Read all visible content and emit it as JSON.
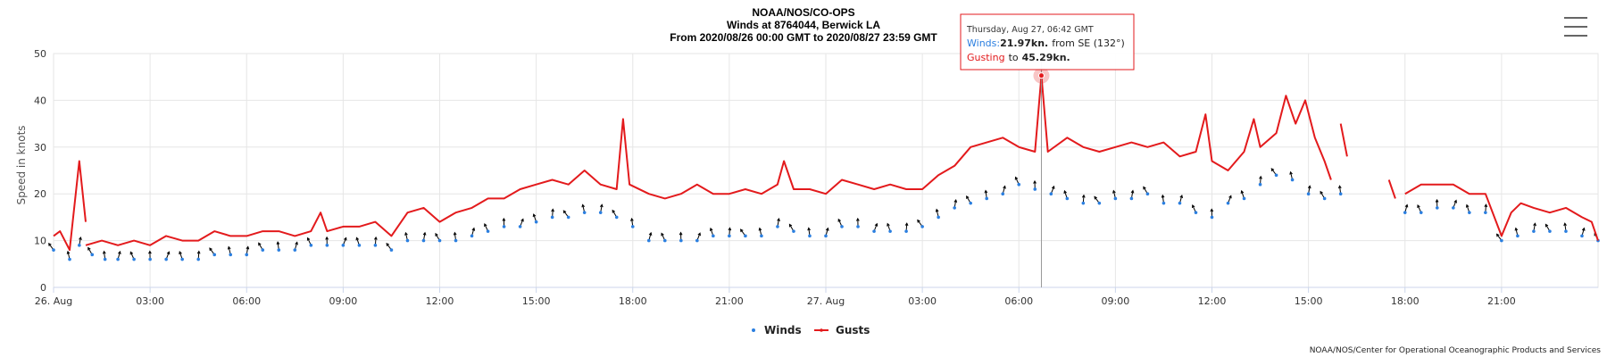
{
  "chart_data": {
    "type": "line",
    "title_lines": [
      "NOAA/NOS/CO-OPS",
      "Winds at 8764044, Berwick LA",
      "From 2020/08/26 00:00 GMT to 2020/08/27 23:59 GMT"
    ],
    "ylabel": "Speed in knots",
    "xlabel": "",
    "ylim": [
      0,
      50
    ],
    "yticks": [
      0,
      10,
      20,
      30,
      40,
      50
    ],
    "xlim": [
      "2020-08-26T00:00",
      "2020-08-27T23:59"
    ],
    "xticks": [
      {
        "hour": 0,
        "label": "26. Aug"
      },
      {
        "hour": 3,
        "label": "03:00"
      },
      {
        "hour": 6,
        "label": "06:00"
      },
      {
        "hour": 9,
        "label": "09:00"
      },
      {
        "hour": 12,
        "label": "12:00"
      },
      {
        "hour": 15,
        "label": "15:00"
      },
      {
        "hour": 18,
        "label": "18:00"
      },
      {
        "hour": 21,
        "label": "21:00"
      },
      {
        "hour": 24,
        "label": "27. Aug"
      },
      {
        "hour": 27,
        "label": "03:00"
      },
      {
        "hour": 30,
        "label": "06:00"
      },
      {
        "hour": 33,
        "label": "09:00"
      },
      {
        "hour": 36,
        "label": "12:00"
      },
      {
        "hour": 39,
        "label": "15:00"
      },
      {
        "hour": 42,
        "label": "18:00"
      },
      {
        "hour": 45,
        "label": "21:00"
      }
    ],
    "grid": true,
    "legend_position": "bottom-center",
    "series": [
      {
        "name": "Winds",
        "kind": "scatter-arrows",
        "color": "#2b7fe0",
        "points": [
          [
            0.0,
            8
          ],
          [
            0.5,
            6
          ],
          [
            0.8,
            9
          ],
          [
            1.2,
            7
          ],
          [
            1.6,
            6
          ],
          [
            2.0,
            6
          ],
          [
            2.5,
            6
          ],
          [
            3.0,
            6
          ],
          [
            3.5,
            6
          ],
          [
            4.0,
            6
          ],
          [
            4.5,
            6
          ],
          [
            5.0,
            7
          ],
          [
            5.5,
            7
          ],
          [
            6.0,
            7
          ],
          [
            6.5,
            8
          ],
          [
            7.0,
            8
          ],
          [
            7.5,
            8
          ],
          [
            8.0,
            9
          ],
          [
            8.5,
            9
          ],
          [
            9.0,
            9
          ],
          [
            9.5,
            9
          ],
          [
            10.0,
            9
          ],
          [
            10.5,
            8
          ],
          [
            11.0,
            10
          ],
          [
            11.5,
            10
          ],
          [
            12.0,
            10
          ],
          [
            12.5,
            10
          ],
          [
            13.0,
            11
          ],
          [
            13.5,
            12
          ],
          [
            14.0,
            13
          ],
          [
            14.5,
            13
          ],
          [
            15.0,
            14
          ],
          [
            15.5,
            15
          ],
          [
            16.0,
            15
          ],
          [
            16.5,
            16
          ],
          [
            17.0,
            16
          ],
          [
            17.5,
            15
          ],
          [
            18.0,
            13
          ],
          [
            18.5,
            10
          ],
          [
            19.0,
            10
          ],
          [
            19.5,
            10
          ],
          [
            20.0,
            10
          ],
          [
            20.5,
            11
          ],
          [
            21.0,
            11
          ],
          [
            21.5,
            11
          ],
          [
            22.0,
            11
          ],
          [
            22.5,
            13
          ],
          [
            23.0,
            12
          ],
          [
            23.5,
            11
          ],
          [
            24.0,
            11
          ],
          [
            24.5,
            13
          ],
          [
            25.0,
            13
          ],
          [
            25.5,
            12
          ],
          [
            26.0,
            12
          ],
          [
            26.5,
            12
          ],
          [
            27.0,
            13
          ],
          [
            27.5,
            15
          ],
          [
            28.0,
            17
          ],
          [
            28.5,
            18
          ],
          [
            29.0,
            19
          ],
          [
            29.5,
            20
          ],
          [
            30.0,
            22
          ],
          [
            30.5,
            21
          ],
          [
            31.0,
            20
          ],
          [
            31.5,
            19
          ],
          [
            32.0,
            18
          ],
          [
            32.5,
            18
          ],
          [
            33.0,
            19
          ],
          [
            33.5,
            19
          ],
          [
            34.0,
            20
          ],
          [
            34.5,
            18
          ],
          [
            35.0,
            18
          ],
          [
            35.5,
            16
          ],
          [
            36.0,
            15
          ],
          [
            36.5,
            18
          ],
          [
            37.0,
            19
          ],
          [
            37.5,
            22
          ],
          [
            38.0,
            24
          ],
          [
            38.5,
            23
          ],
          [
            39.0,
            20
          ],
          [
            39.5,
            19
          ],
          [
            40.0,
            20
          ],
          [
            42.0,
            16
          ],
          [
            42.5,
            16
          ],
          [
            43.0,
            17
          ],
          [
            43.5,
            17
          ],
          [
            44.0,
            16
          ],
          [
            44.5,
            16
          ],
          [
            45.0,
            10
          ],
          [
            45.5,
            11
          ],
          [
            46.0,
            12
          ],
          [
            46.5,
            12
          ],
          [
            47.0,
            12
          ],
          [
            47.5,
            11
          ],
          [
            48.0,
            10
          ]
        ]
      },
      {
        "name": "Gusts",
        "kind": "line",
        "color": "#e31a1c",
        "segments": [
          [
            [
              0.0,
              11
            ],
            [
              0.2,
              12
            ],
            [
              0.5,
              8
            ],
            [
              0.8,
              27
            ],
            [
              1.0,
              14
            ]
          ],
          [
            [
              1.0,
              9
            ],
            [
              1.5,
              10
            ],
            [
              2.0,
              9
            ],
            [
              2.5,
              10
            ],
            [
              3.0,
              9
            ],
            [
              3.5,
              11
            ],
            [
              4.0,
              10
            ],
            [
              4.5,
              10
            ],
            [
              5.0,
              12
            ],
            [
              5.5,
              11
            ],
            [
              6.0,
              11
            ],
            [
              6.5,
              12
            ],
            [
              7.0,
              12
            ],
            [
              7.5,
              11
            ],
            [
              8.0,
              12
            ],
            [
              8.3,
              16
            ],
            [
              8.5,
              12
            ],
            [
              9.0,
              13
            ],
            [
              9.5,
              13
            ],
            [
              10.0,
              14
            ],
            [
              10.5,
              11
            ],
            [
              11.0,
              16
            ],
            [
              11.5,
              17
            ],
            [
              12.0,
              14
            ],
            [
              12.5,
              16
            ],
            [
              13.0,
              17
            ],
            [
              13.5,
              19
            ],
            [
              14.0,
              19
            ],
            [
              14.5,
              21
            ],
            [
              15.0,
              22
            ],
            [
              15.5,
              23
            ],
            [
              16.0,
              22
            ],
            [
              16.5,
              25
            ],
            [
              17.0,
              22
            ],
            [
              17.5,
              21
            ],
            [
              17.7,
              36
            ],
            [
              17.9,
              22
            ],
            [
              18.5,
              20
            ],
            [
              19.0,
              19
            ],
            [
              19.5,
              20
            ],
            [
              20.0,
              22
            ],
            [
              20.5,
              20
            ],
            [
              21.0,
              20
            ],
            [
              21.5,
              21
            ],
            [
              22.0,
              20
            ],
            [
              22.5,
              22
            ],
            [
              22.7,
              27
            ],
            [
              23.0,
              21
            ],
            [
              23.5,
              21
            ],
            [
              24.0,
              20
            ],
            [
              24.5,
              23
            ],
            [
              25.0,
              22
            ],
            [
              25.5,
              21
            ],
            [
              26.0,
              22
            ],
            [
              26.5,
              21
            ],
            [
              27.0,
              21
            ],
            [
              27.5,
              24
            ],
            [
              28.0,
              26
            ],
            [
              28.5,
              30
            ],
            [
              29.0,
              31
            ],
            [
              29.5,
              32
            ],
            [
              30.0,
              30
            ],
            [
              30.5,
              29
            ],
            [
              30.7,
              45.29
            ],
            [
              30.9,
              29
            ],
            [
              31.5,
              32
            ],
            [
              32.0,
              30
            ],
            [
              32.5,
              29
            ],
            [
              33.0,
              30
            ],
            [
              33.5,
              31
            ],
            [
              34.0,
              30
            ],
            [
              34.5,
              31
            ],
            [
              35.0,
              28
            ],
            [
              35.5,
              29
            ],
            [
              35.8,
              37
            ],
            [
              36.0,
              27
            ],
            [
              36.5,
              25
            ],
            [
              37.0,
              29
            ],
            [
              37.3,
              36
            ],
            [
              37.5,
              30
            ],
            [
              38.0,
              33
            ],
            [
              38.3,
              41
            ],
            [
              38.6,
              35
            ],
            [
              38.9,
              40
            ],
            [
              39.2,
              32
            ],
            [
              39.5,
              27
            ],
            [
              39.7,
              23
            ]
          ],
          [
            [
              40.0,
              35
            ],
            [
              40.2,
              28
            ]
          ],
          [
            [
              41.5,
              23
            ],
            [
              41.7,
              19
            ]
          ],
          [
            [
              42.0,
              20
            ],
            [
              42.5,
              22
            ],
            [
              43.0,
              22
            ],
            [
              43.5,
              22
            ],
            [
              44.0,
              20
            ],
            [
              44.5,
              20
            ],
            [
              45.0,
              11
            ],
            [
              45.3,
              16
            ],
            [
              45.6,
              18
            ],
            [
              46.0,
              17
            ],
            [
              46.5,
              16
            ],
            [
              47.0,
              17
            ],
            [
              47.5,
              15
            ],
            [
              47.8,
              14
            ],
            [
              48.0,
              10
            ]
          ]
        ]
      }
    ],
    "tooltip": {
      "hour": 30.7,
      "value": 45.29,
      "date_line": "Thursday, Aug 27, 06:42 GMT",
      "winds_label": "Winds:",
      "winds_value": "21.97kn.",
      "winds_dir": "from SE (132°)",
      "gust_label": "Gusting",
      "gust_mid": "to",
      "gust_value": "45.29kn."
    },
    "credits": "NOAA/NOS/Center for Operational Oceanographic Products and Services"
  },
  "menu_icon": "hamburger-menu-icon"
}
